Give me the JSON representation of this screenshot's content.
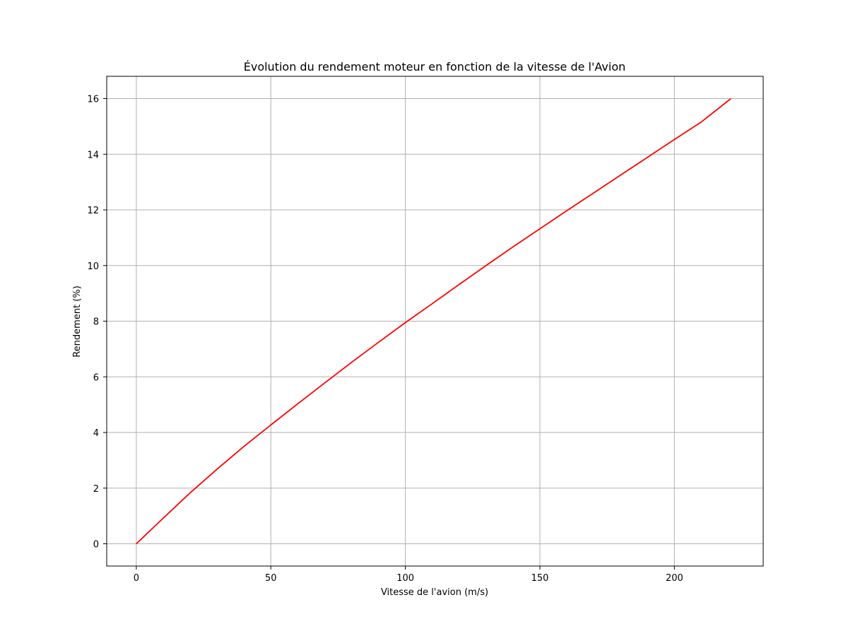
{
  "chart_data": {
    "type": "line",
    "title": "Évolution du rendement moteur en fonction de la vitesse de l'Avion",
    "xlabel": "Vitesse de l'avion (m/s)",
    "ylabel": "Rendement (%)",
    "xlim": [
      -11,
      233
    ],
    "ylim": [
      -0.8,
      16.8
    ],
    "xticks": [
      0,
      50,
      100,
      150,
      200
    ],
    "yticks": [
      0,
      2,
      4,
      6,
      8,
      10,
      12,
      14,
      16
    ],
    "grid": true,
    "series": [
      {
        "color": "#ff0000",
        "x": [
          0,
          10,
          20,
          30,
          40,
          50,
          60,
          70,
          80,
          90,
          100,
          110,
          120,
          130,
          140,
          150,
          160,
          170,
          180,
          190,
          200,
          210,
          221
        ],
        "y": [
          0,
          0.92,
          1.83,
          2.68,
          3.5,
          4.27,
          5.03,
          5.78,
          6.52,
          7.24,
          7.95,
          8.63,
          9.32,
          10.0,
          10.67,
          11.32,
          11.97,
          12.61,
          13.25,
          13.89,
          14.53,
          15.16,
          16.0
        ]
      }
    ]
  }
}
